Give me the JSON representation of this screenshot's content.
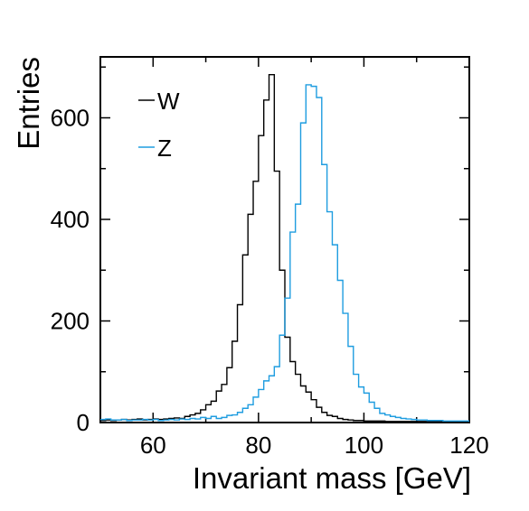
{
  "chart_data": {
    "type": "histogram",
    "xlabel": "Invariant mass [GeV]",
    "ylabel": "Entries",
    "xlim": [
      50,
      120
    ],
    "ylim": [
      0,
      720
    ],
    "xticks": [
      60,
      80,
      100,
      120
    ],
    "xtick_labels": [
      "60",
      "80",
      "100",
      "120"
    ],
    "yticks": [
      0,
      200,
      400,
      600
    ],
    "ytick_labels": [
      "0",
      "200",
      "400",
      "600"
    ],
    "grid": false,
    "legend_position": "top-left",
    "bin_edges_start": 50,
    "bin_width": 1,
    "series": [
      {
        "name": "W",
        "color": "#000000",
        "values": [
          4,
          5,
          4,
          5,
          6,
          5,
          6,
          7,
          5,
          6,
          7,
          6,
          7,
          8,
          9,
          8,
          12,
          15,
          18,
          25,
          35,
          42,
          62,
          75,
          108,
          160,
          232,
          330,
          410,
          475,
          565,
          635,
          685,
          495,
          300,
          168,
          120,
          95,
          72,
          60,
          45,
          30,
          20,
          14,
          12,
          8,
          6,
          5,
          4,
          4,
          3,
          3,
          3,
          3,
          2,
          2,
          2,
          2,
          2,
          2,
          2,
          2,
          2,
          2,
          2,
          2,
          2,
          2,
          2,
          2
        ]
      },
      {
        "name": "Z",
        "color": "#1f9de0",
        "values": [
          6,
          7,
          5,
          5,
          6,
          4,
          5,
          5,
          6,
          5,
          6,
          4,
          5,
          6,
          5,
          7,
          6,
          8,
          7,
          10,
          8,
          12,
          8,
          10,
          14,
          15,
          20,
          28,
          35,
          50,
          65,
          82,
          92,
          110,
          172,
          245,
          375,
          430,
          590,
          665,
          662,
          640,
          508,
          415,
          350,
          280,
          215,
          150,
          95,
          70,
          58,
          40,
          28,
          18,
          15,
          12,
          10,
          8,
          7,
          6,
          5,
          5,
          4,
          4,
          4,
          3,
          3,
          3,
          3,
          3
        ]
      }
    ]
  }
}
